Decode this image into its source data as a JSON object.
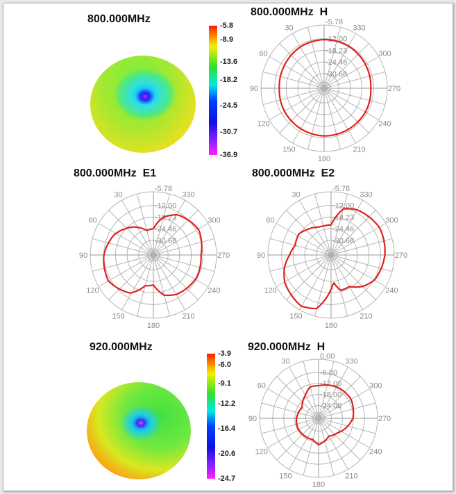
{
  "figure": {
    "sphere_1": {
      "title": "800.000MHz",
      "colorbar_labels": [
        "-5.8",
        "-8.9",
        "-13.6",
        "-18.2",
        "-24.5",
        "-30.7",
        "-36.9"
      ]
    },
    "sphere_2": {
      "title": "920.000MHz",
      "colorbar_labels": [
        "-3.9",
        "-6.0",
        "-9.1",
        "-12.2",
        "-16.4",
        "-20.6",
        "-24.7"
      ]
    }
  },
  "colors": {
    "trace": "#e0201c",
    "grid": "#b4b4b4",
    "tick_text": "#8a8a8a"
  },
  "chart_data": [
    {
      "type": "polar",
      "title": "800.000MHz  H",
      "angle_labels": [
        "30",
        "60",
        "90",
        "120",
        "150",
        "180",
        "210",
        "240",
        "270",
        "300",
        "330"
      ],
      "radial_labels": [
        "-5.78",
        "-12.00",
        "-18.23",
        "-24.46",
        "-30.68"
      ],
      "rlim": [
        -38.6,
        -5.78
      ],
      "angles": [
        0,
        30,
        60,
        90,
        120,
        150,
        180,
        210,
        240,
        270,
        300,
        330,
        360
      ],
      "values": [
        -12.5,
        -13,
        -14,
        -14.5,
        -14,
        -13.5,
        -13,
        -13,
        -13,
        -13.5,
        -13,
        -12.5,
        -12.5
      ]
    },
    {
      "type": "polar",
      "title": "800.000MHz  E1",
      "angle_labels": [
        "30",
        "60",
        "90",
        "120",
        "150",
        "180",
        "210",
        "240",
        "270",
        "300",
        "330"
      ],
      "radial_labels": [
        "-5.78",
        "-12.00",
        "-18.23",
        "-24.46",
        "-30.68"
      ],
      "rlim": [
        -38.6,
        -5.78
      ],
      "angles": [
        0,
        15,
        35,
        62,
        90,
        120,
        149,
        165,
        180,
        195,
        211,
        243,
        270,
        299,
        329,
        345,
        360
      ],
      "values": [
        -24.5,
        -25,
        -20.2,
        -15,
        -12,
        -10.7,
        -14.7,
        -21.5,
        -22.5,
        -16.3,
        -14,
        -12.4,
        -13,
        -10.7,
        -13.4,
        -17.6,
        -24.5
      ]
    },
    {
      "type": "polar",
      "title": "800.000MHz  E2",
      "angle_labels": [
        "30",
        "60",
        "90",
        "120",
        "150",
        "180",
        "210",
        "240",
        "270",
        "300",
        "330"
      ],
      "radial_labels": [
        "-5.78",
        "-12.00",
        "-18.23",
        "-24.46",
        "-30.68"
      ],
      "rlim": [
        -38.6,
        -5.78
      ],
      "angles": [
        0,
        15,
        24,
        45,
        57,
        75,
        90,
        105,
        120,
        150,
        165,
        185,
        195,
        210,
        225,
        240,
        270,
        299,
        331,
        345,
        360
      ],
      "values": [
        -22.5,
        -22.5,
        -22.2,
        -19.6,
        -17.9,
        -18.6,
        -16.3,
        -12.7,
        -9.8,
        -6.8,
        -8.8,
        -24,
        -18.9,
        -19,
        -14.7,
        -11.7,
        -9.7,
        -8.7,
        -10.7,
        -13,
        -22.5
      ]
    },
    {
      "type": "polar",
      "title": "920.000MHz  H",
      "angle_labels": [
        "30",
        "60",
        "90",
        "120",
        "150",
        "180",
        "210",
        "240",
        "270",
        "300",
        "330"
      ],
      "radial_labels": [
        "0.00",
        "-6.00",
        "-12.00",
        "-18.00",
        "-24.00"
      ],
      "rlim": [
        -31,
        0
      ],
      "angles": [
        0,
        15,
        30,
        57,
        90,
        114,
        150,
        165,
        180,
        210,
        232,
        270,
        301,
        329,
        360
      ],
      "values": [
        -13.3,
        -13.3,
        -16.6,
        -20.3,
        -19,
        -18.5,
        -18.8,
        -19,
        -16.6,
        -19.8,
        -18,
        -12.3,
        -10.5,
        -11.2,
        -13.3
      ]
    }
  ]
}
